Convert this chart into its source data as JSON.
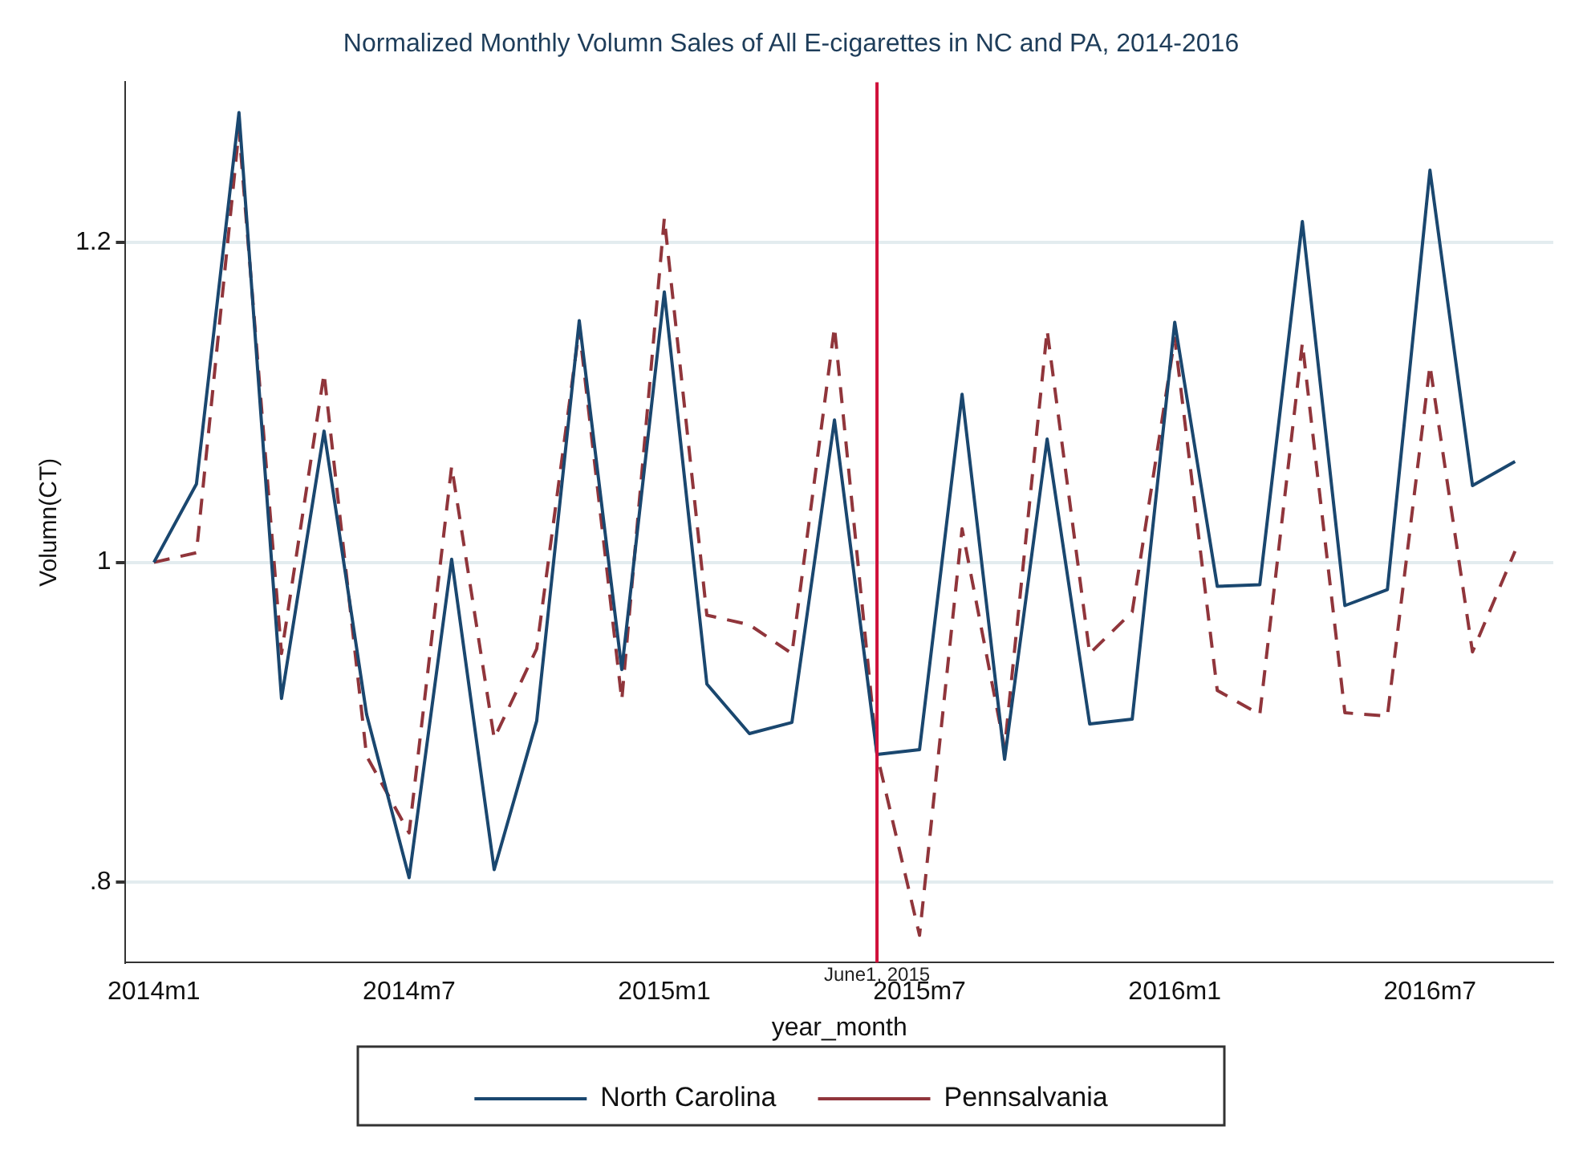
{
  "chart_data": {
    "type": "line",
    "title": "Normalized Monthly Volumn Sales of All E-cigarettes in NC and PA, 2014-2016",
    "xlabel": "year_month",
    "ylabel": "Volumn(CT)",
    "x": [
      "2014-01",
      "2014-02",
      "2014-03",
      "2014-04",
      "2014-05",
      "2014-06",
      "2014-07",
      "2014-08",
      "2014-09",
      "2014-10",
      "2014-11",
      "2014-12",
      "2015-01",
      "2015-02",
      "2015-03",
      "2015-04",
      "2015-05",
      "2015-06",
      "2015-07",
      "2015-08",
      "2015-09",
      "2015-10",
      "2015-11",
      "2015-12",
      "2016-01",
      "2016-02",
      "2016-03",
      "2016-04",
      "2016-05",
      "2016-06",
      "2016-07",
      "2016-08",
      "2016-09"
    ],
    "series": [
      {
        "name": "North Carolina",
        "color": "#1a476f",
        "line_style": "solid",
        "values": [
          1.0,
          1.049,
          1.281,
          0.915,
          1.082,
          0.905,
          0.803,
          1.002,
          0.808,
          0.901,
          1.151,
          0.933,
          1.169,
          0.924,
          0.893,
          0.9,
          1.089,
          0.88,
          0.883,
          1.105,
          0.877,
          1.077,
          0.899,
          0.902,
          1.15,
          0.985,
          0.986,
          1.213,
          0.973,
          0.983,
          1.245,
          1.048,
          1.063
        ]
      },
      {
        "name": "Pennsalvania",
        "color": "#90353b",
        "line_style": "dashed",
        "values": [
          1.0,
          1.006,
          1.27,
          0.943,
          1.118,
          0.879,
          0.831,
          1.06,
          0.89,
          0.946,
          1.146,
          0.914,
          1.215,
          0.967,
          0.961,
          0.943,
          1.147,
          0.88,
          0.767,
          1.021,
          0.884,
          1.145,
          0.943,
          0.969,
          1.14,
          0.92,
          0.905,
          1.137,
          0.906,
          0.904,
          1.123,
          0.944,
          1.007
        ]
      }
    ],
    "xlim": [
      "2013-12-11",
      "2016-09-28"
    ],
    "xticks": [
      {
        "value": "2014-01",
        "label": "2014m1"
      },
      {
        "value": "2014-07",
        "label": "2014m7"
      },
      {
        "value": "2015-01",
        "label": "2015m1"
      },
      {
        "value": "2015-07",
        "label": "2015m7"
      },
      {
        "value": "2016-01",
        "label": "2016m1"
      },
      {
        "value": "2016-07",
        "label": "2016m7"
      }
    ],
    "ylim": [
      0.75,
      1.3
    ],
    "yticks": [
      {
        "value": 0.8,
        "label": ".8"
      },
      1,
      1.2
    ],
    "ref_lines": [
      {
        "axis": "x",
        "value": "2015-06",
        "label": "June1, 2015",
        "color": "#d0103a"
      }
    ],
    "grid": "y",
    "legend": "bottom",
    "marker": "none"
  }
}
